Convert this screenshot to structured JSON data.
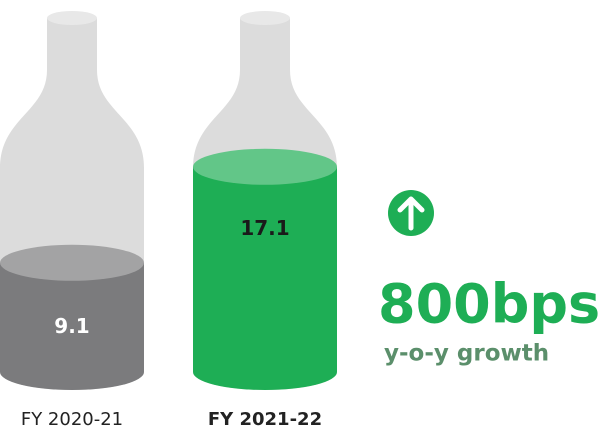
{
  "chart_data": {
    "type": "bar",
    "categories": [
      "FY 2020-21",
      "FY 2021-22"
    ],
    "values": [
      9.1,
      17.1
    ],
    "colors": [
      "#7b7b7d",
      "#1eae55"
    ],
    "annotations": [
      "800bps",
      "y-o-y growth"
    ]
  }
}
